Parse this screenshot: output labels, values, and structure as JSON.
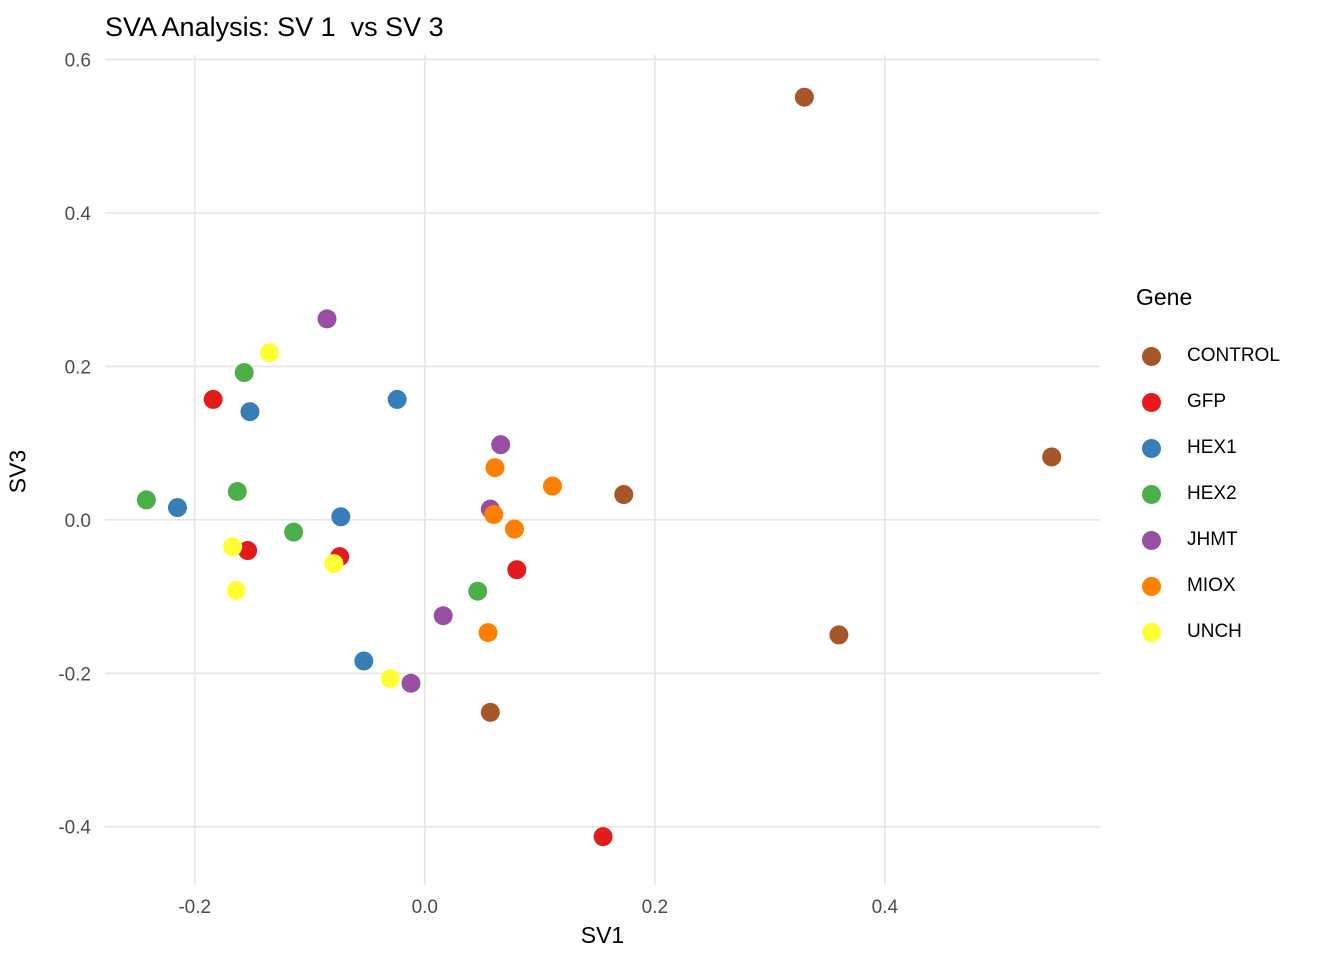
{
  "title": "SVA Analysis: SV 1  vs SV 3",
  "xlabel": "SV1",
  "ylabel": "SV3",
  "legend": {
    "title": "Gene",
    "entries": [
      {
        "label": "CONTROL",
        "color": "#A65628"
      },
      {
        "label": "GFP",
        "color": "#E41A1C"
      },
      {
        "label": "HEX1",
        "color": "#377EB8"
      },
      {
        "label": "HEX2",
        "color": "#4DAF4A"
      },
      {
        "label": "JHMT",
        "color": "#984EA3"
      },
      {
        "label": "MIOX",
        "color": "#FF7F00"
      },
      {
        "label": "UNCH",
        "color": "#FFFF33"
      }
    ]
  },
  "axes": {
    "x_tick_values": [
      -0.2,
      0.0,
      0.2,
      0.4
    ],
    "x_tick_labels": [
      "-0.2",
      "0.0",
      "0.2",
      "0.4"
    ],
    "y_tick_values": [
      -0.4,
      -0.2,
      0.0,
      0.2,
      0.4,
      0.6
    ],
    "y_tick_labels": [
      "-0.4",
      "-0.2",
      "0.0",
      "0.2",
      "0.4",
      "0.6"
    ],
    "grid_color": "#E5E5E5",
    "background": "#FFFFFF"
  },
  "chart_data": {
    "type": "scatter",
    "title": "SVA Analysis: SV 1  vs SV 3",
    "xlabel": "SV1",
    "ylabel": "SV3",
    "xlim": [
      -0.278,
      0.587
    ],
    "ylim": [
      -0.476,
      0.606
    ],
    "grid": true,
    "legend_position": "right",
    "series": [
      {
        "name": "CONTROL",
        "color": "#A65628",
        "points": [
          [
            0.33,
            0.551
          ],
          [
            0.545,
            0.082
          ],
          [
            0.173,
            0.033
          ],
          [
            0.36,
            -0.15
          ],
          [
            0.057,
            -0.251
          ]
        ]
      },
      {
        "name": "GFP",
        "color": "#E41A1C",
        "points": [
          [
            -0.184,
            0.157
          ],
          [
            -0.154,
            -0.04
          ],
          [
            -0.074,
            -0.048
          ],
          [
            0.08,
            -0.065
          ],
          [
            0.155,
            -0.413
          ]
        ]
      },
      {
        "name": "HEX1",
        "color": "#377EB8",
        "points": [
          [
            -0.215,
            0.016
          ],
          [
            -0.152,
            0.141
          ],
          [
            -0.024,
            0.157
          ],
          [
            -0.073,
            0.004
          ],
          [
            -0.053,
            -0.184
          ]
        ]
      },
      {
        "name": "HEX2",
        "color": "#4DAF4A",
        "points": [
          [
            -0.242,
            0.026
          ],
          [
            -0.157,
            0.192
          ],
          [
            -0.163,
            0.037
          ],
          [
            -0.114,
            -0.016
          ],
          [
            0.046,
            -0.093
          ]
        ]
      },
      {
        "name": "JHMT",
        "color": "#984EA3",
        "points": [
          [
            -0.085,
            0.262
          ],
          [
            0.066,
            0.098
          ],
          [
            0.057,
            0.014
          ],
          [
            0.016,
            -0.125
          ],
          [
            -0.012,
            -0.213
          ]
        ]
      },
      {
        "name": "MIOX",
        "color": "#FF7F00",
        "points": [
          [
            0.061,
            0.068
          ],
          [
            0.111,
            0.044
          ],
          [
            0.06,
            0.007
          ],
          [
            0.078,
            -0.012
          ],
          [
            0.055,
            -0.147
          ]
        ]
      },
      {
        "name": "UNCH",
        "color": "#FFFF33",
        "points": [
          [
            -0.135,
            0.218
          ],
          [
            -0.167,
            -0.035
          ],
          [
            -0.164,
            -0.092
          ],
          [
            -0.079,
            -0.057
          ],
          [
            -0.03,
            -0.207
          ]
        ]
      }
    ]
  }
}
